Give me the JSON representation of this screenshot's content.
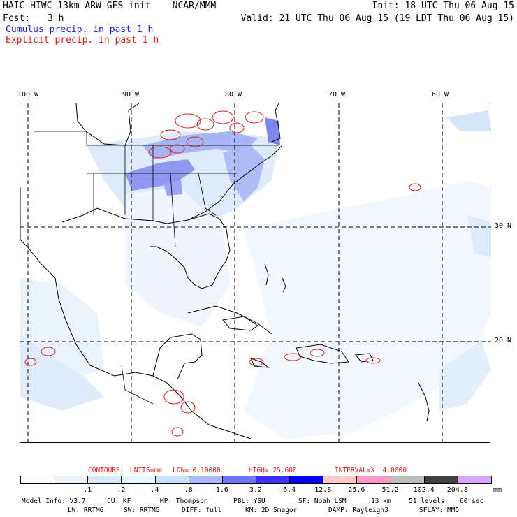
{
  "header": {
    "title": "HAIC-HIWC 13km ARW-GFS init    NCAR/MMM",
    "init": "Init: 18 UTC Thu 06 Aug 15",
    "fcst_label": "Fcst:",
    "fcst_value": "3 h",
    "valid": "Valid: 21 UTC Thu 06 Aug 15 (19 LDT Thu 06 Aug 15)",
    "legend_cumulus": "Cumulus precip. in past 1 h",
    "legend_explicit": "Explicit precip. in past 1 h"
  },
  "map": {
    "lon_labels": [
      "100 W",
      "90 W",
      "80 W",
      "70 W",
      "60 W"
    ],
    "lat_labels": [
      "30 N",
      "20 N"
    ]
  },
  "contours": {
    "label": "CONTOURS:",
    "units": "UNITS=mm",
    "low": "LOW= 0.10000",
    "high": "HIGH= 25.600",
    "interval": "INTERVAL=X  4.0000"
  },
  "colorbar": {
    "labels": [
      ".1",
      ".2",
      ".4",
      ".8",
      "1.6",
      "3.2",
      "6.4",
      "12.8",
      "25.6",
      "51.2",
      "102.4",
      "204.8"
    ],
    "unit": "mm",
    "colors": [
      "#ffffff",
      "#eef5fc",
      "#d8eaf8",
      "#e6fbff",
      "#c5e2ff",
      "#a9b8ff",
      "#6f73ff",
      "#3b30ff",
      "#0000f0",
      "#ffc8c8",
      "#ff96c8",
      "#bcbcbc",
      "#404040",
      "#d4a6ff"
    ]
  },
  "footer": {
    "line1": [
      "Model Info: V3.7",
      "CU: KF",
      "MP: Thompson",
      "PBL: YSU",
      "SF: Noah LSM",
      "13 km",
      "51 levels",
      "60 sec"
    ],
    "line2": [
      "LW: RRTMG",
      "SW: RRTMG",
      "DIFF: full",
      "KM: 2D Smagor",
      "DAMP: Rayleigh3",
      "SFLAY: MM5"
    ]
  }
}
